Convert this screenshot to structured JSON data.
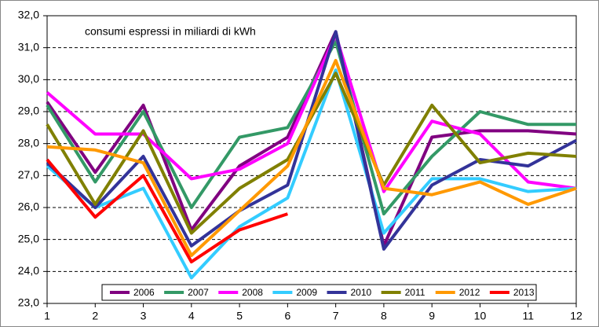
{
  "chart_data": {
    "type": "line",
    "annotation": "consumi espressi in miliardi di kWh",
    "x": [
      1,
      2,
      3,
      4,
      5,
      6,
      7,
      8,
      9,
      10,
      11,
      12
    ],
    "xlim": [
      1,
      12
    ],
    "xticks": [
      1,
      2,
      3,
      4,
      5,
      6,
      7,
      8,
      9,
      10,
      11,
      12
    ],
    "ylim": [
      23,
      32
    ],
    "yticks": [
      {
        "value": 23,
        "label": "23,0"
      },
      {
        "value": 24,
        "label": "24,0"
      },
      {
        "value": 25,
        "label": "25,0"
      },
      {
        "value": 26,
        "label": "26,0"
      },
      {
        "value": 27,
        "label": "27,0"
      },
      {
        "value": 28,
        "label": "28,0"
      },
      {
        "value": 29,
        "label": "29,0"
      },
      {
        "value": 30,
        "label": "30,0"
      },
      {
        "value": 31,
        "label": "31,0"
      },
      {
        "value": 32,
        "label": "32,0"
      }
    ],
    "grid": true,
    "legend": "bottom",
    "series": [
      {
        "name": "2006",
        "color": "#800080",
        "values": [
          29.3,
          27.1,
          29.2,
          25.3,
          27.3,
          28.2,
          31.5,
          24.8,
          28.2,
          28.4,
          28.4,
          28.3
        ]
      },
      {
        "name": "2007",
        "color": "#339966",
        "values": [
          29.2,
          26.8,
          29.0,
          26.0,
          28.2,
          28.5,
          31.2,
          25.8,
          27.6,
          29.0,
          28.6,
          28.6
        ]
      },
      {
        "name": "2008",
        "color": "#ff00ff",
        "values": [
          29.6,
          28.3,
          28.3,
          26.9,
          27.2,
          28.0,
          31.4,
          26.5,
          28.7,
          28.3,
          26.8,
          26.6
        ]
      },
      {
        "name": "2009",
        "color": "#33ccff",
        "values": [
          27.3,
          26.0,
          26.6,
          23.8,
          25.4,
          26.3,
          30.3,
          25.2,
          26.9,
          26.9,
          26.5,
          26.6
        ]
      },
      {
        "name": "2010",
        "color": "#333399",
        "values": [
          27.4,
          26.0,
          27.6,
          24.8,
          25.9,
          26.7,
          31.5,
          24.7,
          26.7,
          27.5,
          27.3,
          28.1
        ]
      },
      {
        "name": "2011",
        "color": "#808000",
        "values": [
          28.6,
          26.1,
          28.4,
          25.2,
          26.6,
          27.5,
          30.2,
          26.7,
          29.2,
          27.4,
          27.7,
          27.6
        ]
      },
      {
        "name": "2012",
        "color": "#ff9900",
        "values": [
          27.9,
          27.8,
          27.4,
          24.5,
          25.9,
          27.3,
          30.6,
          26.6,
          26.4,
          26.8,
          26.1,
          26.6
        ]
      },
      {
        "name": "2013",
        "color": "#ff0000",
        "values": [
          27.5,
          25.7,
          27.0,
          24.3,
          25.3,
          25.8,
          null,
          null,
          null,
          null,
          null,
          null
        ]
      }
    ]
  }
}
